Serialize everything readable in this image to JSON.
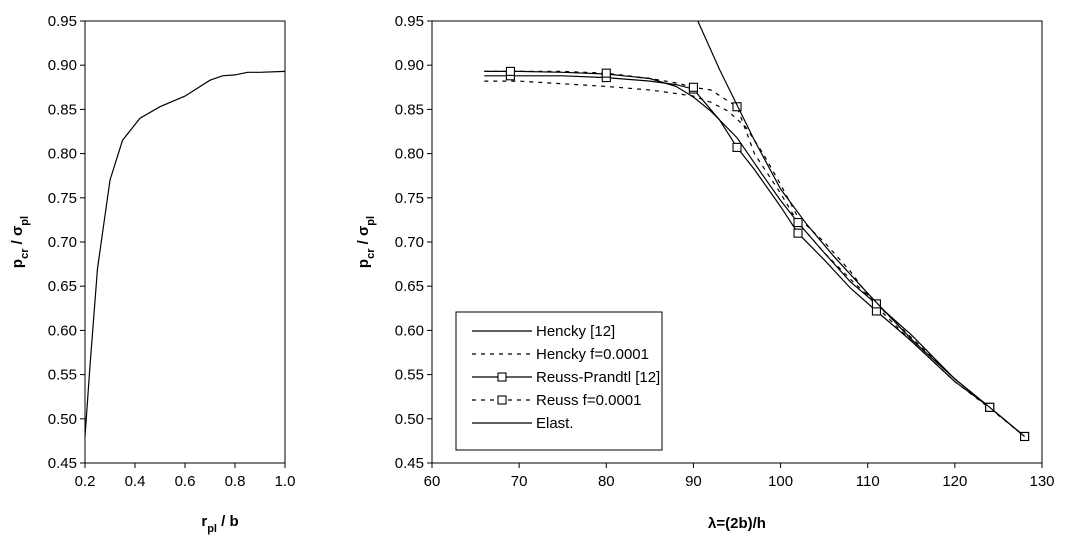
{
  "chart_data": [
    {
      "type": "line",
      "title": "",
      "xlabel": "r_pl / b",
      "xlabel_main": "r",
      "xlabel_sub": "pl",
      "xlabel_rest": " / b",
      "ylabel_main": "p",
      "ylabel_sub1": "cr",
      "ylabel_mid": " / σ",
      "ylabel_sub2": "pl",
      "xlim": [
        0.2,
        1.0
      ],
      "ylim": [
        0.45,
        0.95
      ],
      "xticks": [
        0.2,
        0.4,
        0.6,
        0.8,
        1.0
      ],
      "xtick_labels": [
        "0.2",
        "0.4",
        "0.6",
        "0.8",
        "1.0"
      ],
      "yticks": [
        0.45,
        0.5,
        0.55,
        0.6,
        0.65,
        0.7,
        0.75,
        0.8,
        0.85,
        0.9,
        0.95
      ],
      "ytick_labels": [
        "0.45",
        "0.50",
        "0.55",
        "0.60",
        "0.65",
        "0.70",
        "0.75",
        "0.80",
        "0.85",
        "0.90",
        "0.95"
      ],
      "grid": false,
      "series": [
        {
          "name": "",
          "x": [
            0.2,
            0.22,
            0.25,
            0.3,
            0.35,
            0.42,
            0.5,
            0.6,
            0.7,
            0.75,
            0.8,
            0.85,
            0.9,
            1.0
          ],
          "y": [
            0.48,
            0.56,
            0.67,
            0.77,
            0.815,
            0.84,
            0.853,
            0.865,
            0.883,
            0.888,
            0.889,
            0.892,
            0.892,
            0.893
          ]
        }
      ]
    },
    {
      "type": "line",
      "title": "",
      "xlabel": "λ=(2b)/h",
      "ylabel_main": "p",
      "ylabel_sub1": "cr",
      "ylabel_mid": " / σ",
      "ylabel_sub2": "pl",
      "xlim": [
        60,
        130
      ],
      "ylim": [
        0.45,
        0.95
      ],
      "xticks": [
        60,
        70,
        80,
        90,
        100,
        110,
        120,
        130
      ],
      "xtick_labels": [
        "60",
        "70",
        "80",
        "90",
        "100",
        "110",
        "120",
        "130"
      ],
      "yticks": [
        0.45,
        0.5,
        0.55,
        0.6,
        0.65,
        0.7,
        0.75,
        0.8,
        0.85,
        0.9,
        0.95
      ],
      "ytick_labels": [
        "0.45",
        "0.50",
        "0.55",
        "0.60",
        "0.65",
        "0.70",
        "0.75",
        "0.80",
        "0.85",
        "0.90",
        "0.95"
      ],
      "grid": false,
      "legend": "bottom-left",
      "series": [
        {
          "name": "Hencky [12]",
          "style": "solid",
          "marker": "none",
          "x": [
            66,
            70,
            75,
            80,
            85,
            88,
            90,
            92,
            95,
            98,
            100,
            102,
            105,
            108,
            111,
            115,
            120,
            124,
            128
          ],
          "y": [
            0.893,
            0.893,
            0.892,
            0.89,
            0.885,
            0.876,
            0.864,
            0.848,
            0.818,
            0.775,
            0.747,
            0.722,
            0.688,
            0.655,
            0.63,
            0.595,
            0.545,
            0.513,
            0.48
          ]
        },
        {
          "name": "Henckу f=0.0001",
          "style": "dashed",
          "marker": "none",
          "x": [
            66,
            70,
            75,
            80,
            85,
            88,
            90,
            92,
            94,
            96,
            98,
            100,
            102,
            105,
            108,
            111,
            115,
            120,
            124,
            128
          ],
          "y": [
            0.882,
            0.882,
            0.879,
            0.876,
            0.872,
            0.868,
            0.865,
            0.858,
            0.848,
            0.83,
            0.8,
            0.765,
            0.728,
            0.7,
            0.667,
            0.627,
            0.588,
            0.542,
            0.512,
            0.48
          ]
        },
        {
          "name": "Reuss-Prandtl [12]",
          "style": "solid",
          "marker": "square",
          "x": [
            66,
            69,
            75,
            80,
            85,
            88,
            90,
            93,
            95,
            97,
            100,
            102,
            105,
            108,
            111,
            115,
            120,
            124,
            128
          ],
          "y": [
            0.888,
            0.888,
            0.888,
            0.886,
            0.882,
            0.878,
            0.873,
            0.838,
            0.807,
            0.782,
            0.74,
            0.71,
            0.68,
            0.648,
            0.622,
            0.588,
            0.542,
            0.513,
            0.48
          ],
          "marker_x": [
            69,
            80,
            90,
            95,
            102,
            111,
            124,
            128
          ],
          "marker_y": [
            0.888,
            0.886,
            0.873,
            0.807,
            0.71,
            0.622,
            0.513,
            0.48
          ]
        },
        {
          "name": "Reuss f=0.0001",
          "style": "dashed",
          "marker": "square",
          "x": [
            66,
            69,
            75,
            80,
            85,
            88,
            90,
            92,
            95,
            97,
            100,
            102,
            105,
            108,
            111,
            115,
            120,
            124,
            128
          ],
          "y": [
            0.893,
            0.893,
            0.893,
            0.891,
            0.885,
            0.88,
            0.875,
            0.872,
            0.853,
            0.8,
            0.755,
            0.722,
            0.688,
            0.658,
            0.63,
            0.592,
            0.545,
            0.513,
            0.48
          ],
          "marker_x": [
            69,
            80,
            90,
            95,
            102,
            111,
            124,
            128
          ],
          "marker_y": [
            0.893,
            0.891,
            0.875,
            0.853,
            0.722,
            0.63,
            0.513,
            0.48
          ]
        },
        {
          "name": "Elast.",
          "style": "solid",
          "marker": "none",
          "x": [
            90.5,
            93,
            95,
            97,
            100,
            103,
            106,
            110,
            115,
            120,
            124,
            128
          ],
          "y": [
            0.95,
            0.895,
            0.855,
            0.815,
            0.76,
            0.72,
            0.685,
            0.642,
            0.59,
            0.545,
            0.513,
            0.48
          ]
        }
      ]
    }
  ]
}
